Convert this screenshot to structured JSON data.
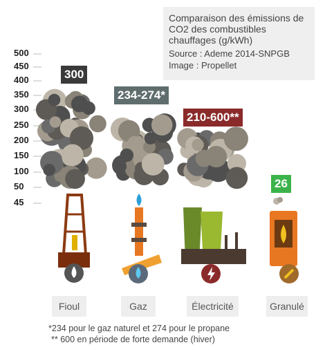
{
  "header": {
    "title": "Comparaison des émissions de CO2 des combustibles chauffages (g/kWh)",
    "source": "Source : Ademe 2014-SNPGB",
    "image": "Image : Propellet"
  },
  "scale": [
    500,
    450,
    400,
    350,
    300,
    250,
    200,
    150,
    100,
    50,
    45
  ],
  "fuels": [
    {
      "name": "Fioul",
      "label": "300"
    },
    {
      "name": "Gaz",
      "label": "234-274*"
    },
    {
      "name": "Électricité",
      "label": "210-600**"
    },
    {
      "name": "Granulé",
      "label": "26"
    }
  ],
  "notes": [
    "*234 pour le gaz naturel et 274 pour le propane",
    "** 600 en période de forte demande (hiver)"
  ]
}
